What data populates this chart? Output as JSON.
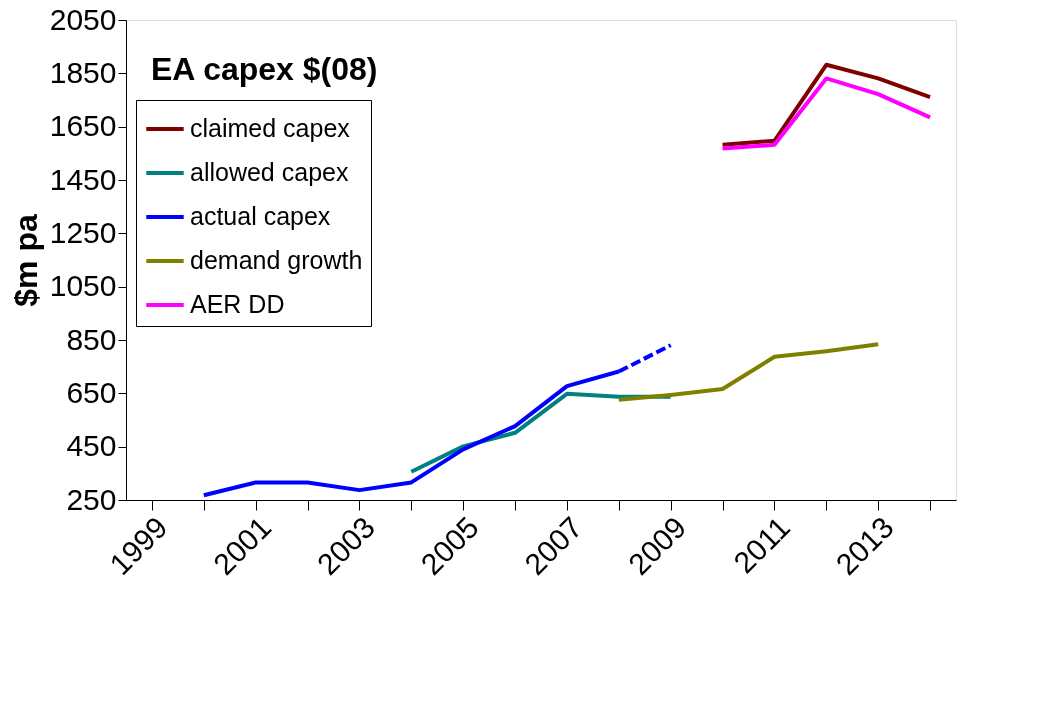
{
  "chart_data": {
    "type": "line",
    "title": "EA capex $(08)",
    "ylabel": "$m pa",
    "categories": [
      "1999",
      null,
      "2001",
      null,
      "2003",
      null,
      "2005",
      null,
      "2007",
      null,
      "2009",
      null,
      "2011",
      null,
      "2013",
      null
    ],
    "series": [
      {
        "name": "claimed capex",
        "color": "#800000",
        "values": [
          null,
          null,
          null,
          null,
          null,
          null,
          null,
          null,
          null,
          null,
          null,
          1582,
          1597,
          1882,
          1831,
          1761
        ]
      },
      {
        "name": "allowed capex",
        "color": "#008080",
        "values": [
          null,
          null,
          null,
          null,
          null,
          356,
          451,
          502,
          648,
          637,
          637,
          null,
          null,
          null,
          null,
          null
        ]
      },
      {
        "name": "actual capex",
        "color": "#0000ff",
        "values": [
          null,
          268,
          316,
          316,
          287,
          316,
          440,
          527,
          677,
          732,
          null,
          null,
          null,
          null,
          null,
          null
        ]
      },
      {
        "name": "demand growth",
        "color": "#808000",
        "values": [
          null,
          null,
          null,
          null,
          null,
          null,
          null,
          null,
          null,
          626,
          644,
          666,
          787,
          808,
          834,
          null
        ]
      },
      {
        "name": "AER DD",
        "color": "#ff00ff",
        "values": [
          null,
          null,
          null,
          null,
          null,
          null,
          null,
          null,
          null,
          null,
          null,
          1568,
          1582,
          1831,
          1772,
          1685
        ]
      },
      {
        "color": "#0000ff",
        "line_style": "dashed",
        "values": [
          null,
          null,
          null,
          null,
          null,
          null,
          null,
          null,
          null,
          732,
          830,
          null,
          null,
          null,
          null,
          null
        ]
      }
    ],
    "ylim": [
      250,
      2050
    ],
    "yticks": [
      250,
      450,
      650,
      850,
      1050,
      1250,
      1450,
      1650,
      1850,
      2050
    ],
    "grid": false,
    "legend": "top left",
    "line_style": "solid",
    "marker": "none"
  }
}
